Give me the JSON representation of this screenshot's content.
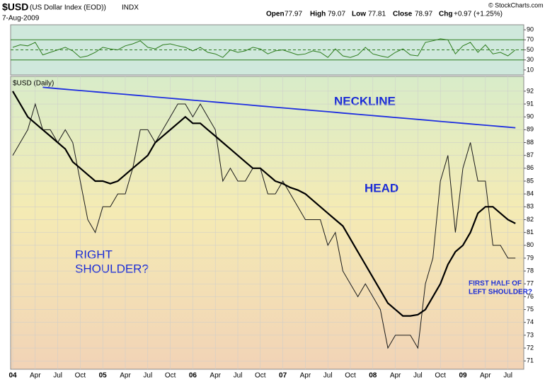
{
  "header": {
    "symbol": "$USD",
    "description": "(US Dollar Index (EOD))",
    "exchange": "INDX",
    "date": "7-Aug-2009",
    "copyright": "© StockCharts.com",
    "quote": [
      {
        "label": "Open",
        "value": "77.97"
      },
      {
        "label": "High",
        "value": "79.07"
      },
      {
        "label": "Low",
        "value": "77.81"
      },
      {
        "label": "Close",
        "value": "78.97"
      },
      {
        "label": "Chg",
        "value": "+0.97 (+1.25%)"
      }
    ]
  },
  "chart_data": [
    {
      "type": "line",
      "panel": "indicator",
      "ylim": [
        0,
        100
      ],
      "yticks": [
        10,
        30,
        50,
        70,
        90
      ],
      "guides": [
        30,
        50,
        70
      ],
      "color": "#2e7d1e",
      "values": [
        55,
        60,
        58,
        65,
        40,
        45,
        50,
        55,
        48,
        35,
        38,
        45,
        55,
        52,
        50,
        58,
        62,
        68,
        55,
        52,
        60,
        62,
        58,
        55,
        48,
        55,
        45,
        42,
        35,
        50,
        45,
        48,
        55,
        52,
        42,
        48,
        50,
        45,
        40,
        42,
        48,
        45,
        35,
        52,
        38,
        35,
        40,
        55,
        42,
        38,
        35,
        45,
        52,
        40,
        38,
        65,
        68,
        72,
        70,
        42,
        58,
        65,
        45,
        60,
        42,
        45,
        38,
        50
      ]
    },
    {
      "type": "line",
      "panel": "price",
      "label": "$USD (Daily)",
      "grid": true,
      "ylim": [
        70.35,
        93.15
      ],
      "yticks": [
        71,
        72,
        73,
        74,
        75,
        76,
        77,
        78,
        79,
        80,
        81,
        82,
        83,
        84,
        85,
        86,
        87,
        88,
        89,
        90,
        91,
        92
      ],
      "categories": [
        "04",
        null,
        null,
        "Apr",
        null,
        null,
        "Jul",
        null,
        null,
        "Oct",
        null,
        null,
        "05",
        null,
        null,
        "Apr",
        null,
        null,
        "Jul",
        null,
        null,
        "Oct",
        null,
        null,
        "06",
        null,
        null,
        "Apr",
        null,
        null,
        "Jul",
        null,
        null,
        "Oct",
        null,
        null,
        "07",
        null,
        null,
        "Apr",
        null,
        null,
        "Jul",
        null,
        null,
        "Oct",
        null,
        null,
        "08",
        null,
        null,
        "Apr",
        null,
        null,
        "Jul",
        null,
        null,
        "Oct",
        null,
        null,
        "09",
        null,
        null,
        "Apr",
        null,
        null,
        "Jul",
        null
      ],
      "series": [
        {
          "color": "#1a1a1a",
          "values": [
            87,
            88,
            89,
            91,
            89,
            89,
            88,
            89,
            88,
            85,
            82,
            81,
            83,
            83,
            84,
            84,
            86,
            89,
            89,
            88,
            89,
            90,
            91,
            91,
            90,
            91,
            90,
            89,
            85,
            86,
            85,
            85,
            86,
            86,
            84,
            84,
            85,
            84,
            83,
            82,
            82,
            82,
            80,
            81,
            78,
            77,
            76,
            77,
            76,
            75,
            72,
            73,
            73,
            73,
            72,
            77,
            79,
            85,
            87,
            81,
            86,
            88,
            85,
            85,
            80,
            80,
            79,
            79
          ]
        },
        {
          "color": "#000000",
          "values": [
            92,
            91,
            90,
            89.5,
            89,
            88.5,
            88,
            87.5,
            86.5,
            86,
            85.5,
            85,
            85,
            84.8,
            85,
            85.5,
            86,
            86.5,
            87,
            88,
            88.5,
            89,
            89.5,
            90,
            89.5,
            89.5,
            89,
            88.5,
            88,
            87.5,
            87,
            86.5,
            86,
            86,
            85.5,
            85,
            84.8,
            84.5,
            84.3,
            84,
            83.5,
            83,
            82.5,
            82,
            81.5,
            80.5,
            79.5,
            78.5,
            77.5,
            76.5,
            75.5,
            75,
            74.5,
            74.5,
            74.6,
            75,
            76,
            77,
            78.5,
            79.5,
            80,
            81,
            82.5,
            83,
            83,
            82.5,
            82,
            81.7
          ]
        },
        {
          "color": "#1f2fe0",
          "values": [
            null,
            null,
            null,
            null,
            92.3,
            92.25,
            92.2,
            92.15,
            92.1,
            92.05,
            92,
            91.95,
            91.9,
            91.85,
            91.8,
            91.75,
            91.7,
            91.65,
            91.6,
            91.55,
            91.5,
            91.45,
            91.4,
            91.35,
            91.3,
            91.25,
            91.2,
            91.15,
            91.1,
            91.05,
            91,
            90.95,
            90.9,
            90.85,
            90.8,
            90.75,
            90.7,
            90.65,
            90.6,
            90.55,
            90.5,
            90.45,
            90.4,
            90.35,
            90.3,
            90.25,
            90.2,
            90.15,
            90.1,
            90.05,
            90,
            89.95,
            89.9,
            89.85,
            89.8,
            89.75,
            89.7,
            89.65,
            89.6,
            89.55,
            89.5,
            89.45,
            89.4,
            89.35,
            89.3,
            89.25,
            89.2,
            89.15
          ]
        }
      ],
      "annotations": [
        {
          "lines": [
            "NECKLINE"
          ]
        },
        {
          "lines": [
            "HEAD"
          ]
        },
        {
          "lines": [
            "RIGHT",
            "SHOULDER?"
          ]
        },
        {
          "lines": [
            "FIRST HALF OF",
            "LEFT SHOULDER?"
          ]
        }
      ]
    }
  ]
}
